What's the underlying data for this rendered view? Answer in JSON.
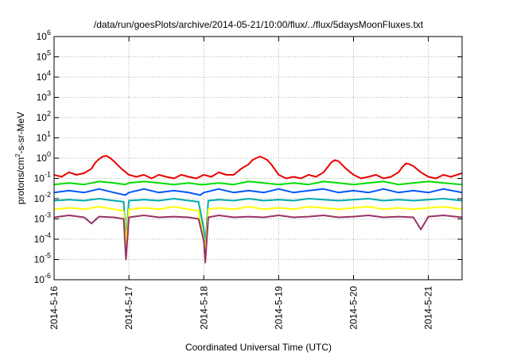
{
  "chart_data": {
    "type": "line",
    "title": "/data/run/goesPlots/archive/2014-05-21/10:00/flux/../flux/5daysMoonFluxes.txt",
    "xlabel": "Coordinated Universal Time (UTC)",
    "ylabel": {
      "prefix": "protons/cm",
      "sup": "2",
      "suffix": "-s-sr-MeV"
    },
    "x_tick_labels": [
      "2014-5-16",
      "2014-5-17",
      "2014-5-18",
      "2014-5-19",
      "2014-5-20",
      "2014-5-21"
    ],
    "x_tick_days": [
      0,
      1,
      2,
      3,
      4,
      5
    ],
    "xlim_days": [
      0,
      5.45
    ],
    "y_scale": "log",
    "y_tick_exponents": [
      -6,
      -5,
      -4,
      -3,
      -2,
      -1,
      0,
      1,
      2,
      3,
      4,
      5,
      6
    ],
    "ylim": [
      1e-06,
      1000000.0
    ],
    "grid": true,
    "series": [
      {
        "color": "#e60000",
        "x": [
          0,
          0.1,
          0.2,
          0.3,
          0.4,
          0.5,
          0.55,
          0.6,
          0.65,
          0.7,
          0.75,
          0.8,
          0.9,
          1.0,
          1.1,
          1.2,
          1.3,
          1.4,
          1.5,
          1.6,
          1.7,
          1.8,
          1.9,
          2.0,
          2.1,
          2.2,
          2.3,
          2.4,
          2.5,
          2.6,
          2.65,
          2.7,
          2.75,
          2.8,
          2.85,
          2.9,
          3.0,
          3.1,
          3.2,
          3.3,
          3.4,
          3.5,
          3.6,
          3.7,
          3.75,
          3.8,
          3.9,
          4.0,
          4.1,
          4.2,
          4.3,
          4.4,
          4.5,
          4.6,
          4.65,
          4.7,
          4.75,
          4.8,
          4.9,
          5.0,
          5.1,
          5.2,
          5.3,
          5.45
        ],
        "y": [
          0.15,
          0.12,
          0.2,
          0.15,
          0.18,
          0.3,
          0.6,
          0.9,
          1.2,
          1.3,
          1.0,
          0.7,
          0.3,
          0.15,
          0.12,
          0.15,
          0.1,
          0.15,
          0.12,
          0.1,
          0.15,
          0.12,
          0.1,
          0.15,
          0.12,
          0.2,
          0.15,
          0.15,
          0.3,
          0.5,
          0.8,
          1.0,
          1.2,
          1.0,
          0.8,
          0.5,
          0.15,
          0.1,
          0.12,
          0.1,
          0.15,
          0.12,
          0.2,
          0.6,
          0.8,
          0.7,
          0.3,
          0.15,
          0.1,
          0.12,
          0.15,
          0.1,
          0.12,
          0.2,
          0.35,
          0.55,
          0.5,
          0.4,
          0.2,
          0.12,
          0.1,
          0.15,
          0.12,
          0.18
        ]
      },
      {
        "color": "#00dd00",
        "x": [
          0,
          0.2,
          0.4,
          0.6,
          0.8,
          0.95,
          1.0,
          1.2,
          1.4,
          1.6,
          1.8,
          1.95,
          2.0,
          2.2,
          2.4,
          2.6,
          2.8,
          3.0,
          3.2,
          3.4,
          3.6,
          3.8,
          4.0,
          4.2,
          4.4,
          4.6,
          4.8,
          5.0,
          5.2,
          5.45
        ],
        "y": [
          0.05,
          0.06,
          0.05,
          0.07,
          0.06,
          0.05,
          0.06,
          0.07,
          0.06,
          0.05,
          0.06,
          0.05,
          0.05,
          0.06,
          0.05,
          0.07,
          0.06,
          0.05,
          0.06,
          0.05,
          0.07,
          0.06,
          0.05,
          0.06,
          0.07,
          0.05,
          0.06,
          0.07,
          0.06,
          0.05
        ]
      },
      {
        "color": "#0055ff",
        "x": [
          0,
          0.2,
          0.4,
          0.6,
          0.8,
          0.95,
          1.0,
          1.2,
          1.4,
          1.6,
          1.8,
          1.95,
          2.0,
          2.2,
          2.4,
          2.6,
          2.8,
          3.0,
          3.2,
          3.4,
          3.6,
          3.8,
          4.0,
          4.2,
          4.4,
          4.6,
          4.8,
          5.0,
          5.2,
          5.45
        ],
        "y": [
          0.02,
          0.025,
          0.02,
          0.03,
          0.02,
          0.015,
          0.02,
          0.03,
          0.02,
          0.025,
          0.02,
          0.015,
          0.02,
          0.03,
          0.02,
          0.025,
          0.02,
          0.03,
          0.02,
          0.025,
          0.03,
          0.02,
          0.025,
          0.02,
          0.03,
          0.02,
          0.025,
          0.02,
          0.03,
          0.02
        ]
      },
      {
        "color": "#00aaaa",
        "x": [
          0,
          0.2,
          0.4,
          0.6,
          0.8,
          0.93,
          0.96,
          1.0,
          1.2,
          1.4,
          1.6,
          1.8,
          1.93,
          2.0,
          2.02,
          2.06,
          2.2,
          2.4,
          2.6,
          2.8,
          3.0,
          3.2,
          3.4,
          3.6,
          3.8,
          4.0,
          4.2,
          4.4,
          4.6,
          4.8,
          5.0,
          5.2,
          5.45
        ],
        "y": [
          0.008,
          0.009,
          0.008,
          0.01,
          0.008,
          0.007,
          0.0001,
          0.008,
          0.009,
          0.008,
          0.01,
          0.008,
          0.007,
          0.0003,
          5e-05,
          0.008,
          0.009,
          0.008,
          0.01,
          0.008,
          0.009,
          0.008,
          0.01,
          0.009,
          0.008,
          0.009,
          0.01,
          0.008,
          0.009,
          0.008,
          0.009,
          0.01,
          0.008
        ]
      },
      {
        "color": "#ffff00",
        "x": [
          0,
          0.2,
          0.4,
          0.6,
          0.8,
          0.93,
          0.96,
          1.0,
          1.2,
          1.4,
          1.6,
          1.8,
          1.93,
          2.0,
          2.02,
          2.06,
          2.2,
          2.4,
          2.6,
          2.8,
          3.0,
          3.2,
          3.4,
          3.6,
          3.8,
          4.0,
          4.2,
          4.4,
          4.6,
          4.8,
          5.0,
          5.2,
          5.45
        ],
        "y": [
          0.003,
          0.0035,
          0.003,
          0.004,
          0.003,
          0.0025,
          5e-05,
          0.003,
          0.0035,
          0.003,
          0.004,
          0.003,
          0.0025,
          0.0001,
          2e-05,
          0.003,
          0.0035,
          0.003,
          0.004,
          0.003,
          0.0035,
          0.003,
          0.004,
          0.0035,
          0.003,
          0.0035,
          0.004,
          0.003,
          0.0035,
          0.003,
          0.0035,
          0.004,
          0.003
        ]
      },
      {
        "color": "#993366",
        "x": [
          0,
          0.2,
          0.4,
          0.5,
          0.6,
          0.8,
          0.93,
          0.96,
          1.0,
          1.2,
          1.4,
          1.6,
          1.8,
          1.93,
          2.0,
          2.02,
          2.06,
          2.2,
          2.4,
          2.6,
          2.8,
          3.0,
          3.2,
          3.4,
          3.6,
          3.8,
          4.0,
          4.2,
          4.4,
          4.6,
          4.8,
          4.9,
          5.0,
          5.2,
          5.45
        ],
        "y": [
          0.0012,
          0.0015,
          0.0012,
          0.0006,
          0.0013,
          0.0012,
          0.001,
          1e-05,
          0.0012,
          0.0015,
          0.0012,
          0.0013,
          0.0012,
          0.001,
          8e-05,
          7e-06,
          0.0012,
          0.0015,
          0.0012,
          0.0013,
          0.0012,
          0.0015,
          0.0012,
          0.0013,
          0.0015,
          0.0012,
          0.0013,
          0.0015,
          0.0012,
          0.0013,
          0.0012,
          0.0003,
          0.0013,
          0.0015,
          0.0012
        ]
      }
    ]
  }
}
